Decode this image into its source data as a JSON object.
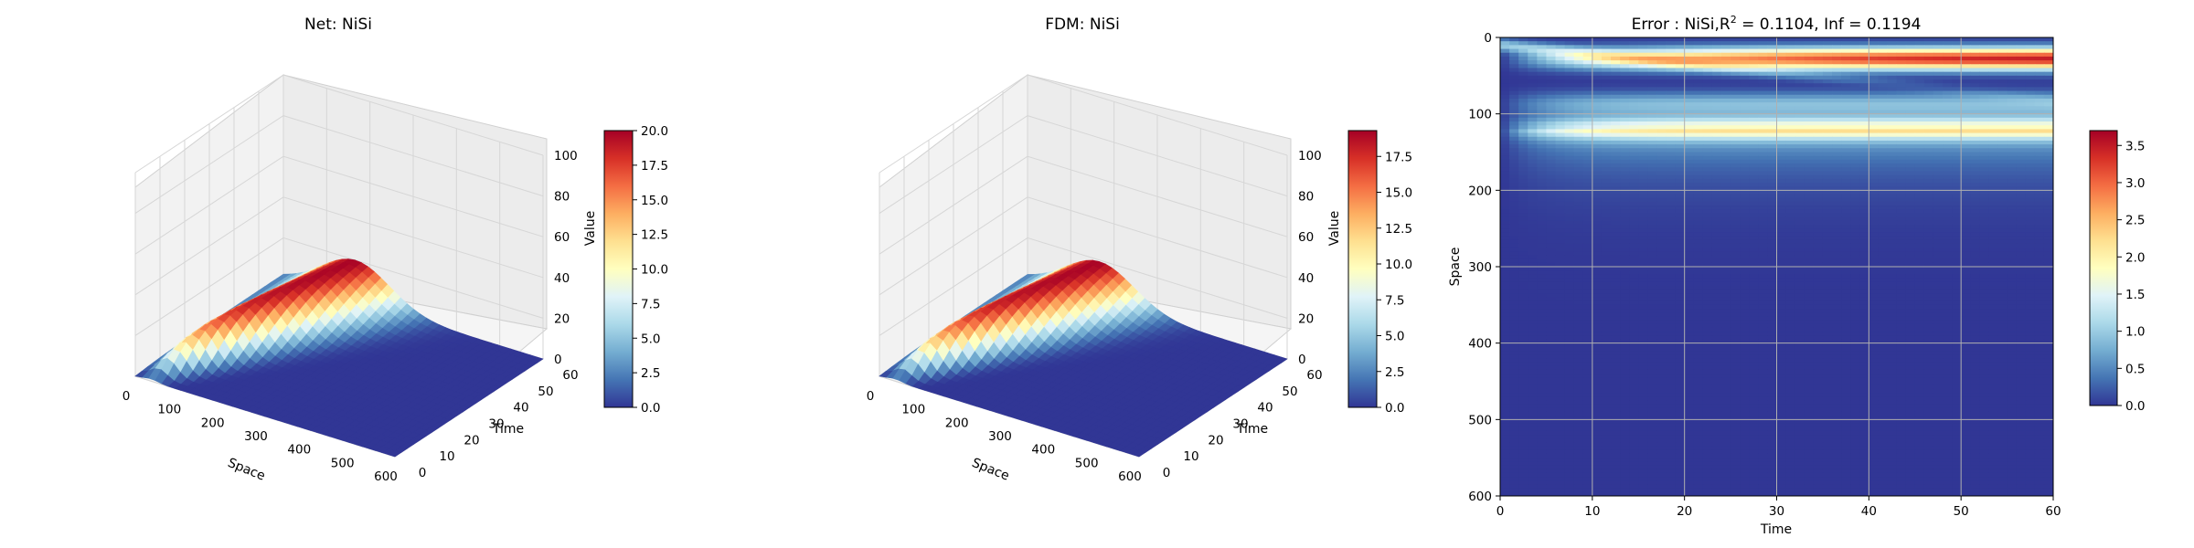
{
  "chart_data": [
    {
      "type": "surface3d",
      "title": "Net: NiSi",
      "xlabel": "Space",
      "ylabel": "Time",
      "zlabel": "Value",
      "x_ticks": [
        "0",
        "100",
        "200",
        "300",
        "400",
        "500",
        "600"
      ],
      "y_ticks": [
        "0",
        "10",
        "20",
        "30",
        "40",
        "50",
        "60"
      ],
      "z_ticks": [
        "0",
        "20",
        "40",
        "60",
        "80",
        "100"
      ],
      "xlim": [
        0,
        600
      ],
      "ylim": [
        0,
        60
      ],
      "zlim": [
        0,
        100
      ],
      "peak_value": 20,
      "colormap": "RdYlBu_r",
      "colorbar": {
        "min": 0,
        "max": 20,
        "ticks": [
          "0.0",
          "2.5",
          "5.0",
          "7.5",
          "10.0",
          "12.5",
          "15.0",
          "17.5",
          "20.0"
        ]
      }
    },
    {
      "type": "surface3d",
      "title": "FDM: NiSi",
      "xlabel": "Space",
      "ylabel": "Time",
      "zlabel": "Value",
      "x_ticks": [
        "0",
        "100",
        "200",
        "300",
        "400",
        "500",
        "600"
      ],
      "y_ticks": [
        "0",
        "10",
        "20",
        "30",
        "40",
        "50",
        "60"
      ],
      "z_ticks": [
        "0",
        "20",
        "40",
        "60",
        "80",
        "100"
      ],
      "xlim": [
        0,
        600
      ],
      "ylim": [
        0,
        60
      ],
      "zlim": [
        0,
        100
      ],
      "peak_value": 19.3,
      "colormap": "RdYlBu_r",
      "colorbar": {
        "min": 0,
        "max": 19.3,
        "ticks": [
          "0.0",
          "2.5",
          "5.0",
          "7.5",
          "10.0",
          "12.5",
          "15.0",
          "17.5"
        ]
      }
    },
    {
      "type": "heatmap",
      "title_prefix": "Error : NiSi,R",
      "title_sup": "2",
      "title_suffix": " = 0.1104, Inf = 0.1194",
      "xlabel": "Time",
      "ylabel": "Space",
      "x_ticks": [
        "0",
        "10",
        "20",
        "30",
        "40",
        "50",
        "60"
      ],
      "y_ticks": [
        "0",
        "100",
        "200",
        "300",
        "400",
        "500",
        "600"
      ],
      "xlim": [
        0,
        60
      ],
      "ylim": [
        600,
        0
      ],
      "grid": true,
      "colormap": "RdYlBu_r",
      "colorbar": {
        "min": 0,
        "max": 3.7,
        "ticks": [
          "0.0",
          "0.5",
          "1.0",
          "1.5",
          "2.0",
          "2.5",
          "3.0",
          "3.5"
        ]
      }
    }
  ]
}
